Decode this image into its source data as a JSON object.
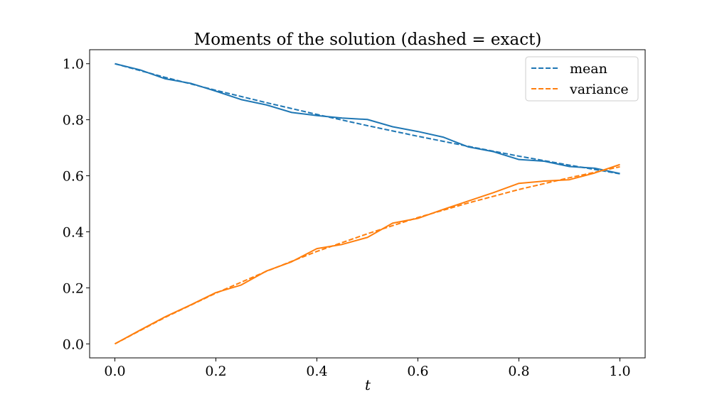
{
  "chart_data": {
    "type": "line",
    "title": "Moments of the solution (dashed = exact)",
    "xlabel": "t",
    "ylabel": "",
    "xlim": [
      -0.05,
      1.05
    ],
    "ylim": [
      -0.05,
      1.05
    ],
    "xticks": [
      0.0,
      0.2,
      0.4,
      0.6,
      0.8,
      1.0
    ],
    "xtick_labels": [
      "0.0",
      "0.2",
      "0.4",
      "0.6",
      "0.8",
      "1.0"
    ],
    "yticks": [
      0.0,
      0.2,
      0.4,
      0.6,
      0.8,
      1.0
    ],
    "ytick_labels": [
      "0.0",
      "0.2",
      "0.4",
      "0.6",
      "0.8",
      "1.0"
    ],
    "grid": false,
    "legend_position": "top-right",
    "colors": {
      "mean": "#1f77b4",
      "variance": "#ff7f0e"
    },
    "legend": [
      {
        "label": "mean",
        "color": "#1f77b4",
        "style": "dashed"
      },
      {
        "label": "variance",
        "color": "#ff7f0e",
        "style": "dashed"
      }
    ],
    "series": [
      {
        "name": "mean",
        "style": "dashed",
        "color": "#1f77b4",
        "x": [
          0.0,
          0.1,
          0.2,
          0.3,
          0.4,
          0.5,
          0.6,
          0.7,
          0.8,
          0.9,
          1.0
        ],
        "y": [
          1.0,
          0.951,
          0.905,
          0.861,
          0.819,
          0.779,
          0.741,
          0.705,
          0.67,
          0.638,
          0.607
        ]
      },
      {
        "name": "mean",
        "style": "solid",
        "color": "#1f77b4",
        "x": [
          0.0,
          0.05,
          0.1,
          0.15,
          0.2,
          0.25,
          0.3,
          0.35,
          0.4,
          0.45,
          0.5,
          0.55,
          0.6,
          0.65,
          0.7,
          0.75,
          0.8,
          0.85,
          0.9,
          0.95,
          1.0
        ],
        "y": [
          1.0,
          0.978,
          0.946,
          0.93,
          0.902,
          0.872,
          0.853,
          0.826,
          0.815,
          0.806,
          0.801,
          0.775,
          0.758,
          0.738,
          0.703,
          0.686,
          0.658,
          0.652,
          0.633,
          0.627,
          0.608
        ]
      },
      {
        "name": "variance",
        "style": "dashed",
        "color": "#ff7f0e",
        "x": [
          0.0,
          0.1,
          0.2,
          0.3,
          0.4,
          0.5,
          0.6,
          0.7,
          0.8,
          0.9,
          1.0
        ],
        "y": [
          0.0,
          0.095,
          0.181,
          0.259,
          0.33,
          0.393,
          0.451,
          0.503,
          0.551,
          0.593,
          0.632
        ]
      },
      {
        "name": "variance",
        "style": "solid",
        "color": "#ff7f0e",
        "x": [
          0.0,
          0.05,
          0.1,
          0.15,
          0.2,
          0.25,
          0.3,
          0.35,
          0.4,
          0.45,
          0.5,
          0.55,
          0.6,
          0.65,
          0.7,
          0.75,
          0.8,
          0.85,
          0.9,
          0.95,
          1.0
        ],
        "y": [
          0.0,
          0.049,
          0.097,
          0.139,
          0.183,
          0.21,
          0.26,
          0.293,
          0.34,
          0.355,
          0.38,
          0.431,
          0.448,
          0.48,
          0.51,
          0.54,
          0.573,
          0.581,
          0.586,
          0.61,
          0.64
        ]
      }
    ]
  }
}
